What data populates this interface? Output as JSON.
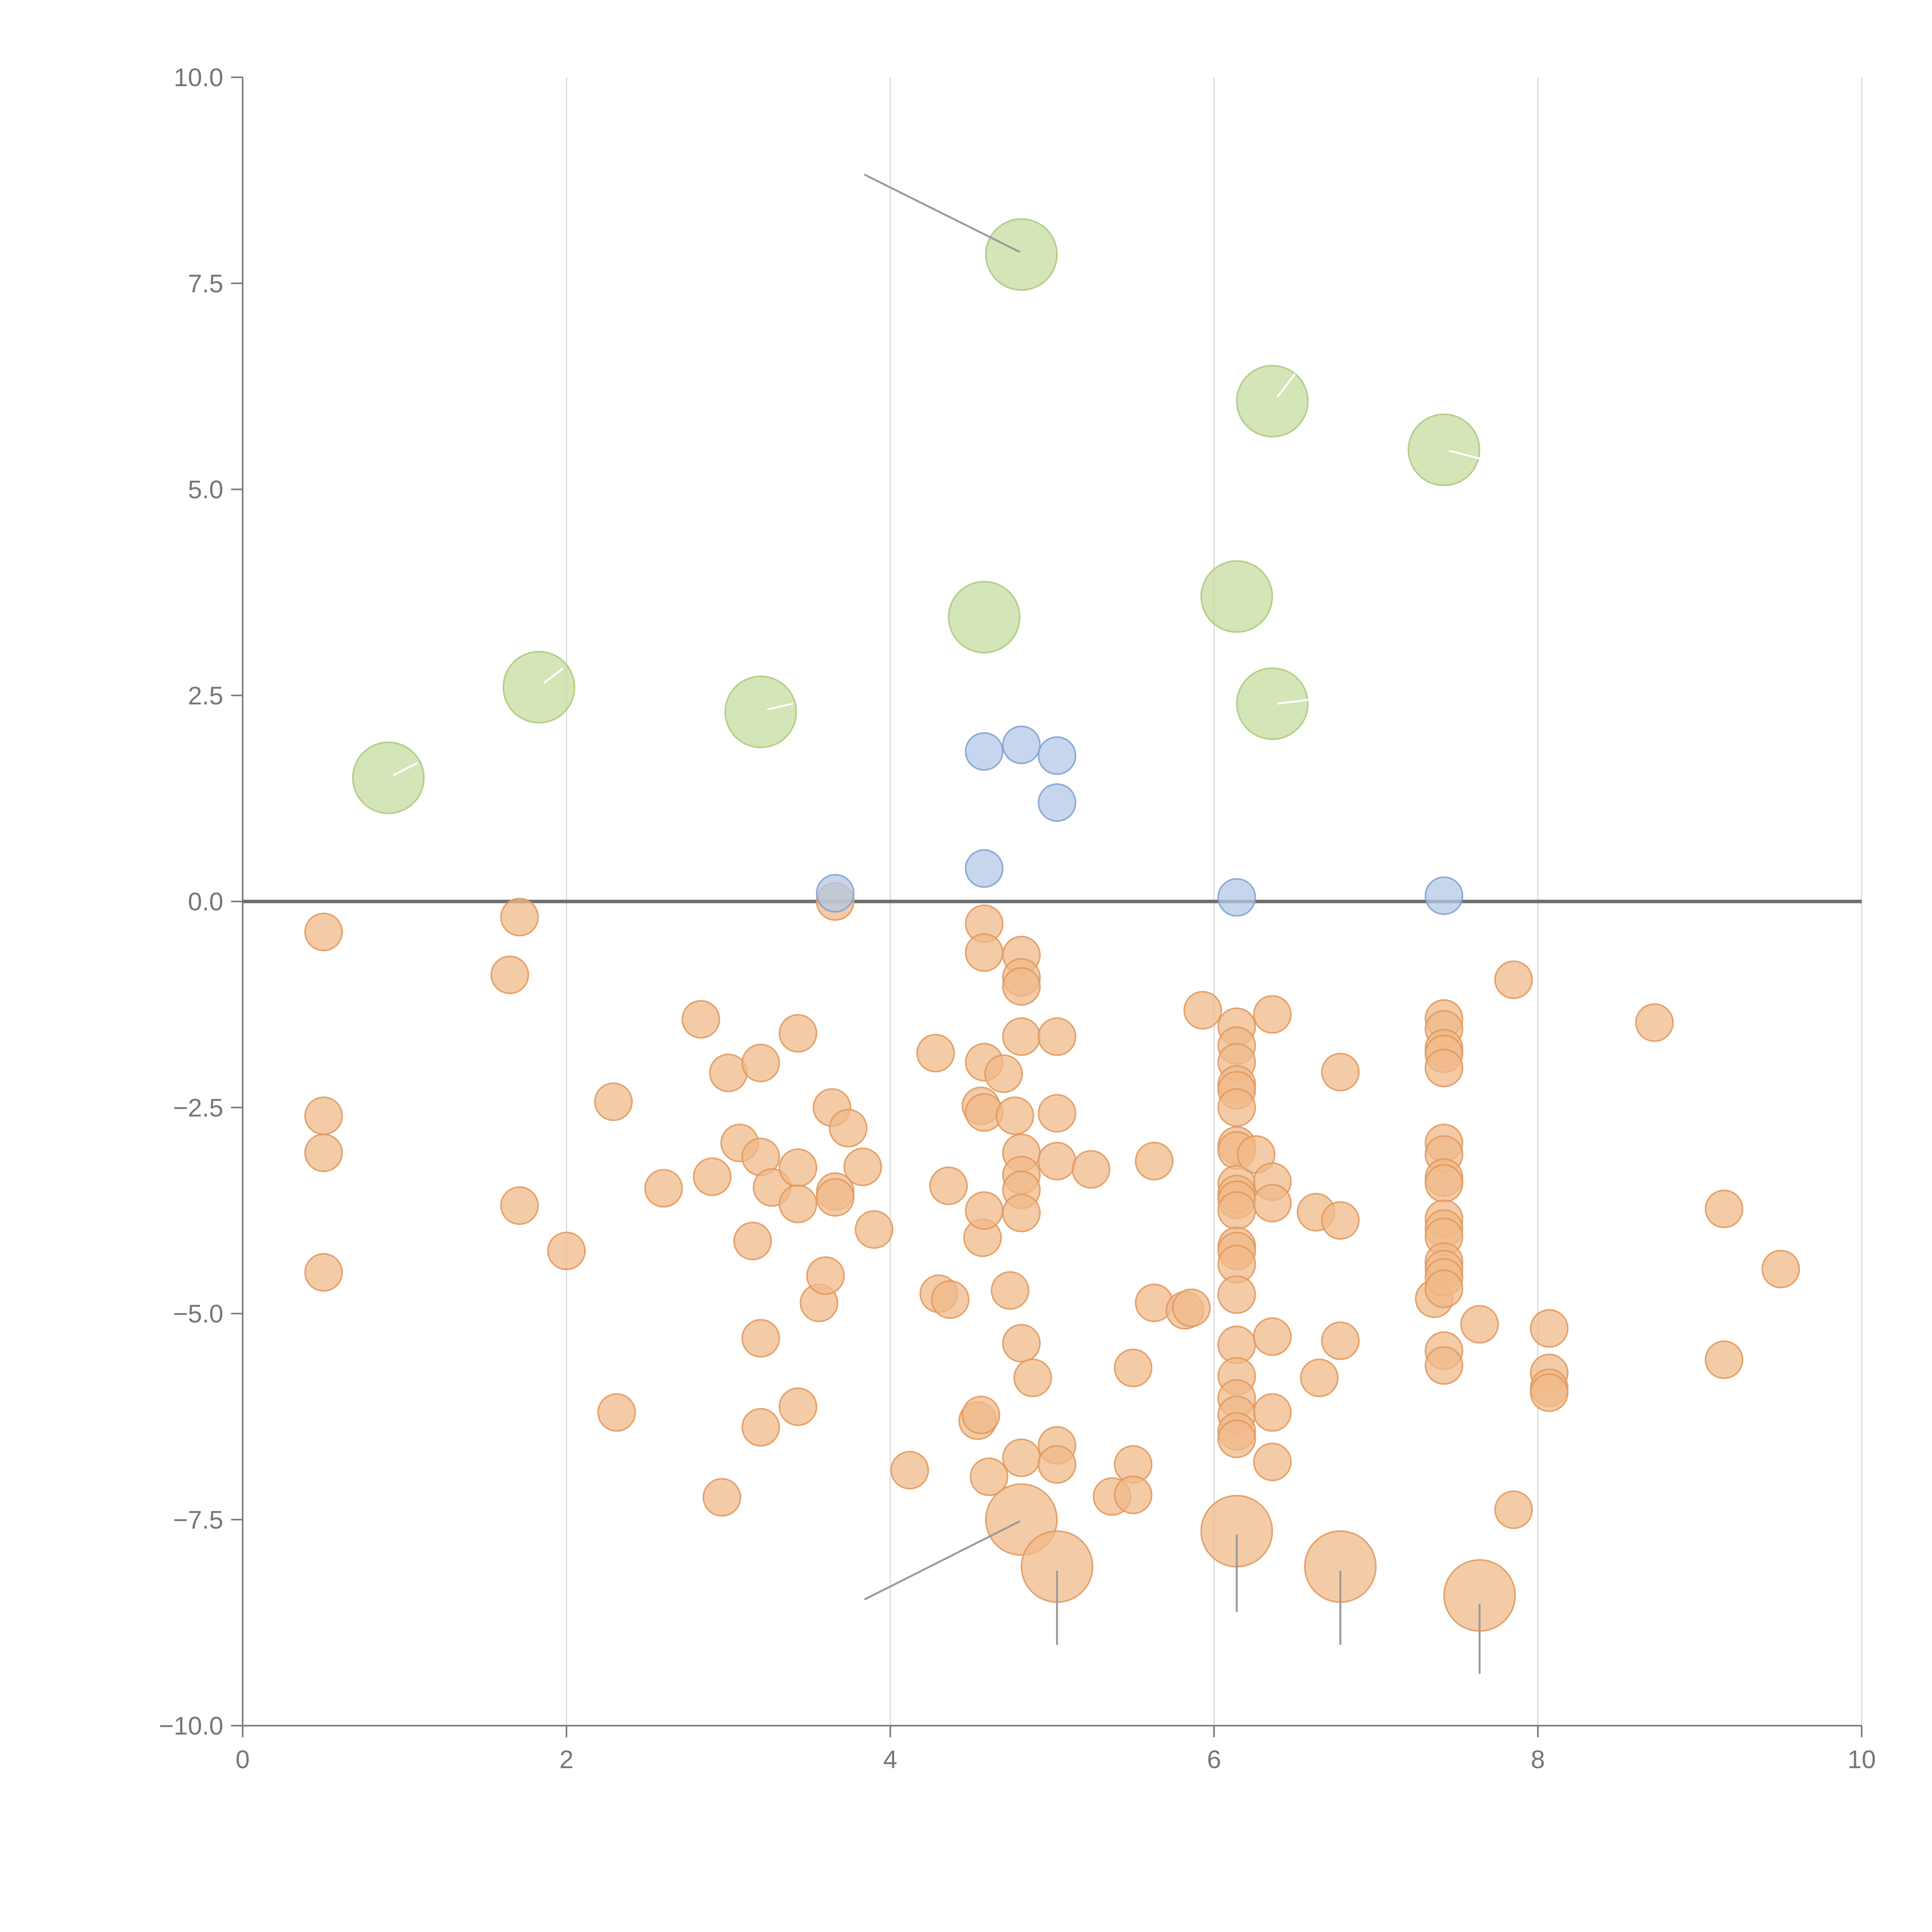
{
  "chart_data": {
    "type": "scatter",
    "title": "",
    "xlabel": "",
    "ylabel": "",
    "xlim": [
      0,
      10
    ],
    "ylim": [
      -10,
      10
    ],
    "x_ticks": [
      0,
      2,
      4,
      6,
      8,
      10
    ],
    "x_tick_labels": [
      "0",
      "2",
      "4",
      "6",
      "8",
      "10"
    ],
    "y_ticks": [
      10,
      7.5,
      5,
      2.5,
      0,
      -2.5,
      -5,
      -7.5,
      -10
    ],
    "y_tick_labels": [
      "10.0",
      "7.5",
      "5.0",
      "2.5",
      "0.0",
      "−2.5",
      "−5.0",
      "−7.5",
      "−10.0"
    ],
    "x_grid": true,
    "y_grid": false,
    "zero_line": true,
    "legend": "none",
    "colors": {
      "large_positive": "#c6dca0",
      "large_positive_stroke": "#a9c97a",
      "small_positive": "#b4c8e6",
      "small_positive_stroke": "#7d9fd0",
      "negative": "#f0b98a",
      "negative_stroke": "#e0975a",
      "leader_gray": "#9a9a9a",
      "leader_white": "#ffffff"
    },
    "series": [
      {
        "size": "large",
        "color": "green",
        "points": [
          [
            0.9,
            1.5
          ],
          [
            1.83,
            2.6
          ],
          [
            3.2,
            2.3
          ],
          [
            4.58,
            3.45
          ],
          [
            4.81,
            7.85
          ],
          [
            6.14,
            3.7
          ],
          [
            6.36,
            2.4
          ],
          [
            6.36,
            6.07
          ],
          [
            7.42,
            5.48
          ]
        ]
      },
      {
        "size": "small",
        "color": "blue",
        "points": [
          [
            3.66,
            0.1
          ],
          [
            4.58,
            0.4
          ],
          [
            4.58,
            1.82
          ],
          [
            4.81,
            1.9
          ],
          [
            5.03,
            1.77
          ],
          [
            5.03,
            1.2
          ],
          [
            6.14,
            0.05
          ],
          [
            7.42,
            0.07
          ]
        ]
      },
      {
        "size": "large",
        "color": "orange",
        "points": [
          [
            4.81,
            -7.5
          ],
          [
            5.03,
            -8.07
          ],
          [
            6.14,
            -7.64
          ],
          [
            6.78,
            -8.07
          ],
          [
            7.64,
            -8.42
          ]
        ]
      },
      {
        "size": "small",
        "color": "orange",
        "points": [
          [
            0.5,
            -0.37
          ],
          [
            0.5,
            -2.6
          ],
          [
            0.5,
            -3.05
          ],
          [
            0.5,
            -4.5
          ],
          [
            1.71,
            -0.19
          ],
          [
            1.65,
            -0.89
          ],
          [
            1.71,
            -3.69
          ],
          [
            2.0,
            -4.24
          ],
          [
            2.29,
            -2.43
          ],
          [
            2.31,
            -6.2
          ],
          [
            2.6,
            -3.48
          ],
          [
            2.83,
            -1.43
          ],
          [
            2.9,
            -3.34
          ],
          [
            2.96,
            -7.23
          ],
          [
            3.0,
            -2.08
          ],
          [
            3.07,
            -2.93
          ],
          [
            3.15,
            -4.12
          ],
          [
            3.2,
            -1.96
          ],
          [
            3.2,
            -3.1
          ],
          [
            3.2,
            -5.3
          ],
          [
            3.2,
            -6.38
          ],
          [
            3.27,
            -3.47
          ],
          [
            3.43,
            -1.6
          ],
          [
            3.43,
            -3.23
          ],
          [
            3.43,
            -3.67
          ],
          [
            3.43,
            -6.13
          ],
          [
            3.56,
            -4.87
          ],
          [
            3.6,
            -4.54
          ],
          [
            3.64,
            -2.5
          ],
          [
            3.66,
            -3.52
          ],
          [
            3.66,
            -3.59
          ],
          [
            3.74,
            -2.75
          ],
          [
            3.83,
            -3.22
          ],
          [
            3.9,
            -3.98
          ],
          [
            3.66,
            0.0
          ],
          [
            4.12,
            -6.9
          ],
          [
            4.28,
            -1.84
          ],
          [
            4.3,
            -4.76
          ],
          [
            4.36,
            -3.45
          ],
          [
            4.37,
            -4.83
          ],
          [
            4.54,
            -6.3
          ],
          [
            4.56,
            -6.23
          ],
          [
            4.56,
            -2.48
          ],
          [
            4.57,
            -4.08
          ],
          [
            4.58,
            -0.27
          ],
          [
            4.58,
            -0.62
          ],
          [
            4.58,
            -1.95
          ],
          [
            4.58,
            -2.56
          ],
          [
            4.58,
            -3.75
          ],
          [
            4.61,
            -6.98
          ],
          [
            4.7,
            -2.09
          ],
          [
            4.74,
            -4.72
          ],
          [
            4.77,
            -2.6
          ],
          [
            4.81,
            -0.65
          ],
          [
            4.81,
            -0.92
          ],
          [
            4.81,
            -1.03
          ],
          [
            4.81,
            -1.64
          ],
          [
            4.81,
            -3.05
          ],
          [
            4.81,
            -3.32
          ],
          [
            4.81,
            -3.5
          ],
          [
            4.81,
            -3.78
          ],
          [
            4.81,
            -5.36
          ],
          [
            4.81,
            -6.75
          ],
          [
            4.88,
            -5.78
          ],
          [
            5.03,
            -1.64
          ],
          [
            5.03,
            -2.57
          ],
          [
            5.03,
            -3.15
          ],
          [
            5.03,
            -6.6
          ],
          [
            5.03,
            -6.83
          ],
          [
            5.24,
            -3.25
          ],
          [
            5.37,
            -7.22
          ],
          [
            5.5,
            -5.66
          ],
          [
            5.5,
            -6.83
          ],
          [
            5.5,
            -7.2
          ],
          [
            5.63,
            -3.15
          ],
          [
            5.63,
            -4.87
          ],
          [
            5.82,
            -4.96
          ],
          [
            5.86,
            -4.93
          ],
          [
            5.93,
            -1.32
          ],
          [
            6.14,
            -1.52
          ],
          [
            6.14,
            -1.75
          ],
          [
            6.14,
            -1.95
          ],
          [
            6.14,
            -2.22
          ],
          [
            6.14,
            -2.29
          ],
          [
            6.14,
            -2.5
          ],
          [
            6.14,
            -2.96
          ],
          [
            6.14,
            -3.02
          ],
          [
            6.14,
            -3.43
          ],
          [
            6.14,
            -3.55
          ],
          [
            6.14,
            -3.62
          ],
          [
            6.14,
            -3.75
          ],
          [
            6.14,
            -4.18
          ],
          [
            6.14,
            -4.24
          ],
          [
            6.14,
            -4.4
          ],
          [
            6.14,
            -4.77
          ],
          [
            6.14,
            -5.38
          ],
          [
            6.14,
            -5.76
          ],
          [
            6.14,
            -6.03
          ],
          [
            6.14,
            -6.23
          ],
          [
            6.14,
            -6.43
          ],
          [
            6.14,
            -6.52
          ],
          [
            6.26,
            -3.07
          ],
          [
            6.36,
            -1.37
          ],
          [
            6.36,
            -3.4
          ],
          [
            6.36,
            -3.66
          ],
          [
            6.36,
            -5.28
          ],
          [
            6.36,
            -6.2
          ],
          [
            6.36,
            -6.8
          ],
          [
            6.63,
            -3.77
          ],
          [
            6.65,
            -5.78
          ],
          [
            6.78,
            -2.07
          ],
          [
            6.78,
            -3.87
          ],
          [
            6.78,
            -5.33
          ],
          [
            7.36,
            -4.82
          ],
          [
            7.42,
            -1.42
          ],
          [
            7.42,
            -1.55
          ],
          [
            7.42,
            -1.78
          ],
          [
            7.42,
            -1.85
          ],
          [
            7.42,
            -2.02
          ],
          [
            7.42,
            -2.93
          ],
          [
            7.42,
            -3.07
          ],
          [
            7.42,
            -3.35
          ],
          [
            7.42,
            -3.42
          ],
          [
            7.42,
            -3.85
          ],
          [
            7.42,
            -3.97
          ],
          [
            7.42,
            -4.07
          ],
          [
            7.42,
            -4.37
          ],
          [
            7.42,
            -4.46
          ],
          [
            7.42,
            -4.56
          ],
          [
            7.42,
            -4.7
          ],
          [
            7.42,
            -5.45
          ],
          [
            7.42,
            -5.63
          ],
          [
            7.64,
            -5.13
          ],
          [
            7.85,
            -0.95
          ],
          [
            7.85,
            -7.38
          ],
          [
            8.07,
            -5.18
          ],
          [
            8.07,
            -5.72
          ],
          [
            8.07,
            -5.9
          ],
          [
            8.07,
            -5.96
          ],
          [
            8.72,
            -1.47
          ],
          [
            9.15,
            -3.73
          ],
          [
            9.15,
            -5.56
          ],
          [
            9.5,
            -4.46
          ]
        ]
      }
    ]
  }
}
